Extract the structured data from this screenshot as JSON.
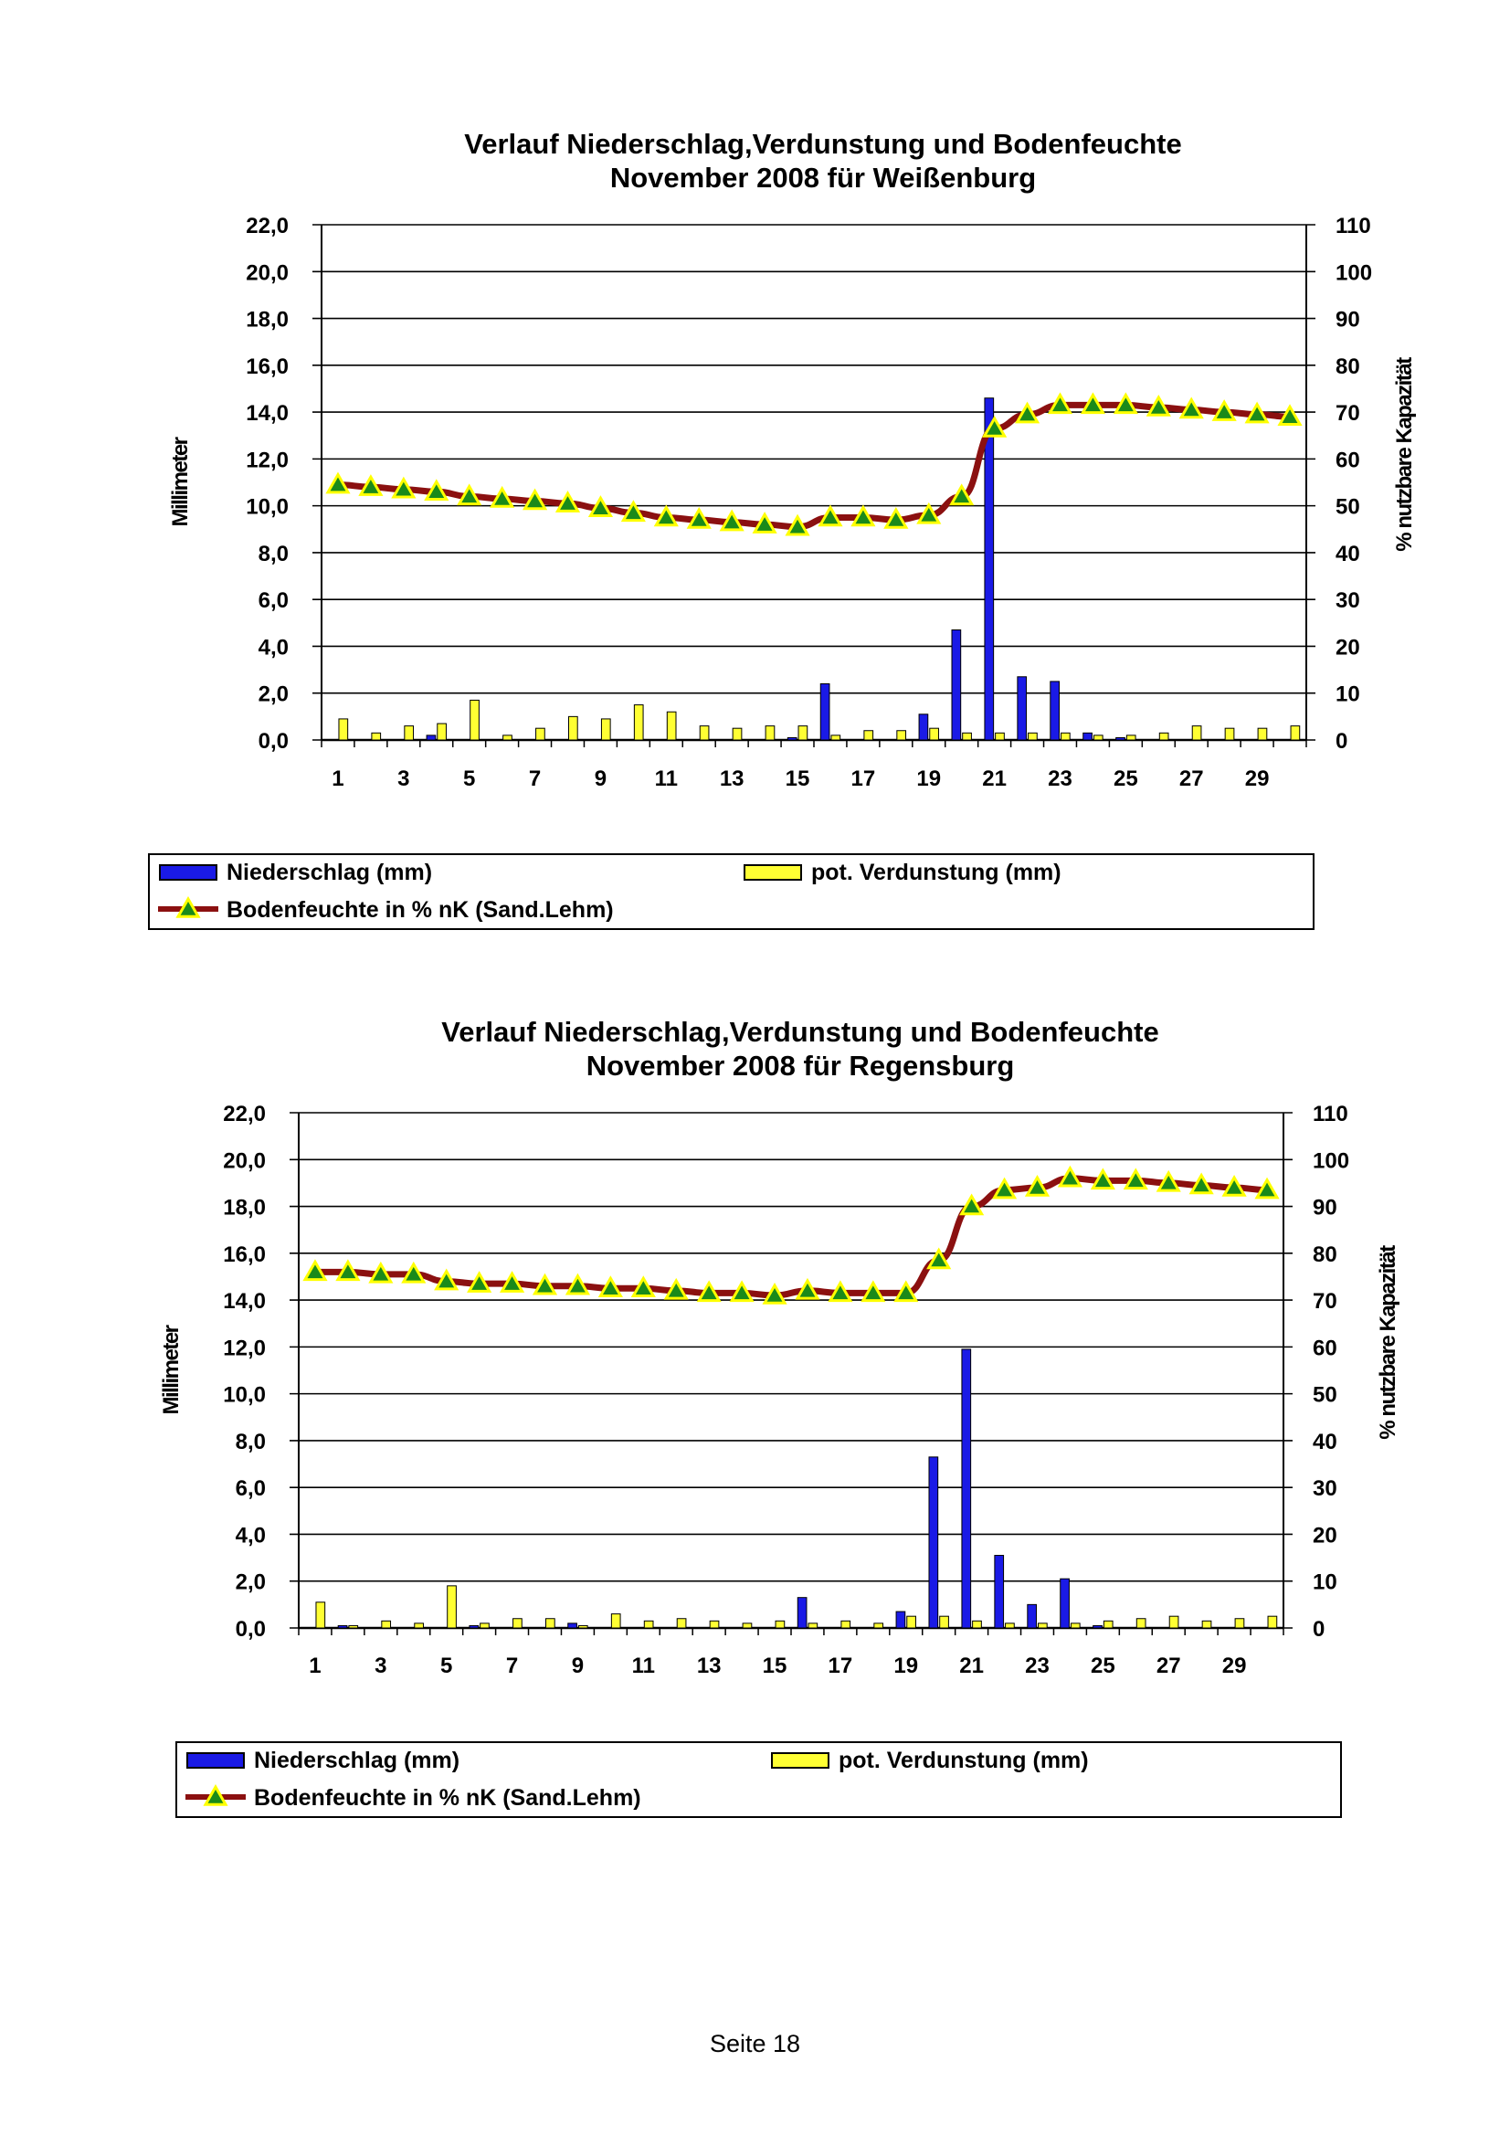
{
  "page": {
    "footer": "Seite 18"
  },
  "colors": {
    "precip": "#1a1ae6",
    "evap": "#ffff33",
    "soil_line": "#8b1010",
    "soil_marker": "#ffff00",
    "soil_marker_inner": "#1a8a1a",
    "grid": "#000000"
  },
  "chart_data": [
    {
      "type": "bar",
      "title": "Verlauf Niederschlag,Verdunstung und Bodenfeuchte",
      "subtitle": "November 2008 für Weißenburg",
      "ylabel": "Millimeter",
      "y2label": "% nutzbare Kapazität",
      "ylim": [
        0,
        22
      ],
      "y2lim": [
        0,
        110
      ],
      "y_ticks": [
        "0,0",
        "2,0",
        "4,0",
        "6,0",
        "8,0",
        "10,0",
        "12,0",
        "14,0",
        "16,0",
        "18,0",
        "20,0",
        "22,0"
      ],
      "y2_ticks": [
        "0",
        "10",
        "20",
        "30",
        "40",
        "50",
        "60",
        "70",
        "80",
        "90",
        "100",
        "110"
      ],
      "x_ticks": [
        "1",
        "3",
        "5",
        "7",
        "9",
        "11",
        "13",
        "15",
        "17",
        "19",
        "21",
        "23",
        "25",
        "27",
        "29"
      ],
      "x": [
        1,
        2,
        3,
        4,
        5,
        6,
        7,
        8,
        9,
        10,
        11,
        12,
        13,
        14,
        15,
        16,
        17,
        18,
        19,
        20,
        21,
        22,
        23,
        24,
        25,
        26,
        27,
        28,
        29,
        30
      ],
      "legend": {
        "precip": "Niederschlag (mm)",
        "evap": "pot. Verdunstung (mm)",
        "soil": "Bodenfeuchte in % nK (Sand.Lehm)"
      },
      "series": [
        {
          "name": "Niederschlag (mm)",
          "kind": "bar",
          "values": [
            0,
            0,
            0,
            0.2,
            0,
            0,
            0,
            0,
            0,
            0,
            0,
            0,
            0,
            0,
            0.1,
            2.4,
            0,
            0,
            1.1,
            4.7,
            14.6,
            2.7,
            2.5,
            0.3,
            0.1,
            0,
            0,
            0,
            0,
            0
          ]
        },
        {
          "name": "pot. Verdunstung (mm)",
          "kind": "bar",
          "values": [
            0.9,
            0.3,
            0.6,
            0.7,
            1.7,
            0.2,
            0.5,
            1.0,
            0.9,
            1.5,
            1.2,
            0.6,
            0.5,
            0.6,
            0.6,
            0.2,
            0.4,
            0.4,
            0.5,
            0.3,
            0.3,
            0.3,
            0.3,
            0.2,
            0.2,
            0.3,
            0.6,
            0.5,
            0.5,
            0.6
          ]
        },
        {
          "name": "Bodenfeuchte in % nK (Sand.Lehm)",
          "kind": "line",
          "axis": "y2",
          "values": [
            54.5,
            54,
            53.5,
            53,
            52,
            51.5,
            51,
            50.5,
            49.5,
            48.5,
            47.5,
            47,
            46.5,
            46,
            45.5,
            47.5,
            47.5,
            47,
            48,
            52,
            66.5,
            69.5,
            71.5,
            71.5,
            71.5,
            71,
            70.5,
            70,
            69.5,
            69
          ]
        }
      ]
    },
    {
      "type": "bar",
      "title": "Verlauf Niederschlag,Verdunstung und Bodenfeuchte",
      "subtitle": "November 2008 für Regensburg",
      "ylabel": "Millimeter",
      "y2label": "% nutzbare Kapazität",
      "ylim": [
        0,
        22
      ],
      "y2lim": [
        0,
        110
      ],
      "y_ticks": [
        "0,0",
        "2,0",
        "4,0",
        "6,0",
        "8,0",
        "10,0",
        "12,0",
        "14,0",
        "16,0",
        "18,0",
        "20,0",
        "22,0"
      ],
      "y2_ticks": [
        "0",
        "10",
        "20",
        "30",
        "40",
        "50",
        "60",
        "70",
        "80",
        "90",
        "100",
        "110"
      ],
      "x_ticks": [
        "1",
        "3",
        "5",
        "7",
        "9",
        "11",
        "13",
        "15",
        "17",
        "19",
        "21",
        "23",
        "25",
        "27",
        "29"
      ],
      "x": [
        1,
        2,
        3,
        4,
        5,
        6,
        7,
        8,
        9,
        10,
        11,
        12,
        13,
        14,
        15,
        16,
        17,
        18,
        19,
        20,
        21,
        22,
        23,
        24,
        25,
        26,
        27,
        28,
        29,
        30
      ],
      "legend": {
        "precip": "Niederschlag (mm)",
        "evap": "pot. Verdunstung (mm)",
        "soil": "Bodenfeuchte in % nK (Sand.Lehm)"
      },
      "series": [
        {
          "name": "Niederschlag (mm)",
          "kind": "bar",
          "values": [
            0,
            0.1,
            0,
            0,
            0,
            0.1,
            0,
            0,
            0.2,
            0,
            0,
            0,
            0,
            0,
            0,
            1.3,
            0,
            0,
            0.7,
            7.3,
            11.9,
            3.1,
            1.0,
            2.1,
            0.1,
            0,
            0,
            0,
            0,
            0
          ]
        },
        {
          "name": "pot. Verdunstung (mm)",
          "kind": "bar",
          "values": [
            1.1,
            0.1,
            0.3,
            0.2,
            1.8,
            0.2,
            0.4,
            0.4,
            0.1,
            0.6,
            0.3,
            0.4,
            0.3,
            0.2,
            0.3,
            0.2,
            0.3,
            0.2,
            0.5,
            0.5,
            0.3,
            0.2,
            0.2,
            0.2,
            0.3,
            0.4,
            0.5,
            0.3,
            0.4,
            0.5
          ]
        },
        {
          "name": "Bodenfeuchte in % nK (Sand.Lehm)",
          "kind": "line",
          "axis": "y2",
          "values": [
            76,
            76,
            75.5,
            75.5,
            74,
            73.5,
            73.5,
            73,
            73,
            72.5,
            72.5,
            72,
            71.5,
            71.5,
            71,
            72,
            71.5,
            71.5,
            71.5,
            78.5,
            90,
            93.5,
            94,
            96,
            95.5,
            95.5,
            95,
            94.5,
            94,
            93.5
          ]
        }
      ]
    }
  ]
}
